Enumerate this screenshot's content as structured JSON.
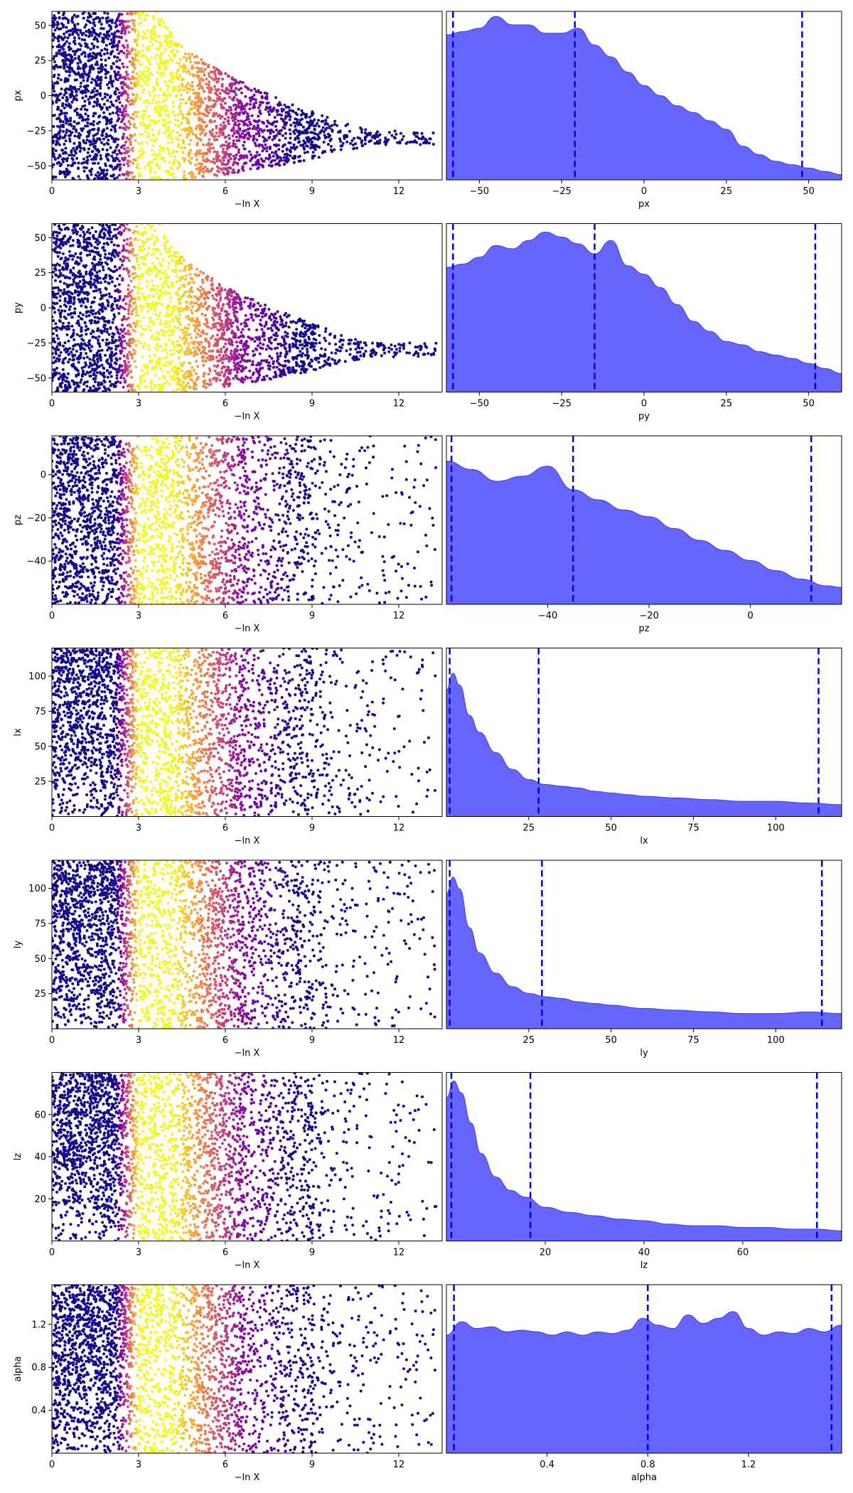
{
  "chart_data": [
    {
      "row": 0,
      "panel": "scatter",
      "type": "scatter",
      "xlabel": "−ln X",
      "ylabel": "px",
      "xlim": [
        0,
        13.5
      ],
      "ylim": [
        -60,
        60
      ],
      "xticks": [
        0,
        3,
        6,
        9,
        12
      ],
      "yticks": [
        50,
        25,
        0,
        -25,
        -50
      ],
      "envelope": "cone",
      "envelope_high": 60,
      "envelope_low": -60,
      "envelope_sat": 3.8,
      "envelope_tip": -25,
      "envelope_end": 11,
      "n_points": 3000
    },
    {
      "row": 0,
      "panel": "kde",
      "type": "area",
      "xlabel": "px",
      "xlim": [
        -60,
        60
      ],
      "xticks": [
        -50,
        -25,
        0,
        25,
        50
      ],
      "vlines": [
        -58,
        -21,
        48
      ],
      "density": [
        [
          -60,
          0.86
        ],
        [
          -55,
          0.88
        ],
        [
          -50,
          0.9
        ],
        [
          -45,
          0.97
        ],
        [
          -40,
          0.92
        ],
        [
          -35,
          0.92
        ],
        [
          -30,
          0.87
        ],
        [
          -25,
          0.87
        ],
        [
          -20,
          0.9
        ],
        [
          -15,
          0.8
        ],
        [
          -10,
          0.73
        ],
        [
          -5,
          0.64
        ],
        [
          0,
          0.56
        ],
        [
          5,
          0.5
        ],
        [
          10,
          0.44
        ],
        [
          15,
          0.4
        ],
        [
          20,
          0.35
        ],
        [
          25,
          0.3
        ],
        [
          30,
          0.2
        ],
        [
          35,
          0.15
        ],
        [
          40,
          0.11
        ],
        [
          45,
          0.09
        ],
        [
          50,
          0.07
        ],
        [
          55,
          0.05
        ],
        [
          60,
          0.03
        ]
      ]
    },
    {
      "row": 1,
      "panel": "scatter",
      "type": "scatter",
      "xlabel": "−ln X",
      "ylabel": "py",
      "xlim": [
        0,
        13.5
      ],
      "ylim": [
        -60,
        60
      ],
      "xticks": [
        0,
        3,
        6,
        9,
        12
      ],
      "yticks": [
        50,
        25,
        0,
        -25,
        -50
      ],
      "envelope": "cone",
      "envelope_high": 60,
      "envelope_low": -60,
      "envelope_sat": 3.8,
      "envelope_tip": -25,
      "envelope_end": 11,
      "n_points": 3000
    },
    {
      "row": 1,
      "panel": "kde",
      "type": "area",
      "xlabel": "py",
      "xlim": [
        -60,
        60
      ],
      "xticks": [
        -50,
        -25,
        0,
        25,
        50
      ],
      "vlines": [
        -58,
        -15,
        52
      ],
      "density": [
        [
          -60,
          0.74
        ],
        [
          -55,
          0.76
        ],
        [
          -50,
          0.8
        ],
        [
          -45,
          0.87
        ],
        [
          -40,
          0.85
        ],
        [
          -35,
          0.9
        ],
        [
          -30,
          0.95
        ],
        [
          -25,
          0.92
        ],
        [
          -20,
          0.88
        ],
        [
          -15,
          0.82
        ],
        [
          -10,
          0.9
        ],
        [
          -5,
          0.75
        ],
        [
          0,
          0.7
        ],
        [
          5,
          0.62
        ],
        [
          10,
          0.52
        ],
        [
          15,
          0.42
        ],
        [
          20,
          0.36
        ],
        [
          25,
          0.3
        ],
        [
          30,
          0.28
        ],
        [
          35,
          0.24
        ],
        [
          40,
          0.22
        ],
        [
          45,
          0.2
        ],
        [
          50,
          0.17
        ],
        [
          55,
          0.14
        ],
        [
          60,
          0.11
        ]
      ]
    },
    {
      "row": 2,
      "panel": "scatter",
      "type": "scatter",
      "xlabel": "−ln X",
      "ylabel": "pz",
      "xlim": [
        0,
        13.5
      ],
      "ylim": [
        -60,
        18
      ],
      "xticks": [
        0,
        3,
        6,
        9,
        12
      ],
      "yticks": [
        0,
        -20,
        -40
      ],
      "envelope": "fill",
      "n_points": 3000
    },
    {
      "row": 2,
      "panel": "kde",
      "type": "area",
      "xlabel": "pz",
      "xlim": [
        -60,
        18
      ],
      "xticks": [
        -40,
        -20,
        0
      ],
      "vlines": [
        -59,
        -35,
        12
      ],
      "density": [
        [
          -60,
          0.85
        ],
        [
          -55,
          0.8
        ],
        [
          -50,
          0.73
        ],
        [
          -45,
          0.76
        ],
        [
          -40,
          0.82
        ],
        [
          -35,
          0.68
        ],
        [
          -30,
          0.62
        ],
        [
          -25,
          0.56
        ],
        [
          -20,
          0.52
        ],
        [
          -15,
          0.45
        ],
        [
          -10,
          0.38
        ],
        [
          -5,
          0.32
        ],
        [
          0,
          0.26
        ],
        [
          5,
          0.2
        ],
        [
          10,
          0.15
        ],
        [
          15,
          0.11
        ],
        [
          18,
          0.1
        ]
      ]
    },
    {
      "row": 3,
      "panel": "scatter",
      "type": "scatter",
      "xlabel": "−ln X",
      "ylabel": "lx",
      "xlim": [
        0,
        13.5
      ],
      "ylim": [
        0,
        120
      ],
      "xticks": [
        0,
        3,
        6,
        9,
        12
      ],
      "yticks": [
        25,
        50,
        75,
        100
      ],
      "envelope": "fill",
      "n_points": 3000
    },
    {
      "row": 3,
      "panel": "kde",
      "type": "area",
      "xlabel": "lx",
      "xlim": [
        0,
        120
      ],
      "xticks": [
        25,
        50,
        75,
        100
      ],
      "vlines": [
        1,
        28,
        113
      ],
      "density": [
        [
          0,
          0.75
        ],
        [
          2,
          0.85
        ],
        [
          4,
          0.78
        ],
        [
          7,
          0.6
        ],
        [
          10,
          0.5
        ],
        [
          15,
          0.38
        ],
        [
          20,
          0.28
        ],
        [
          25,
          0.22
        ],
        [
          30,
          0.19
        ],
        [
          35,
          0.18
        ],
        [
          40,
          0.17
        ],
        [
          45,
          0.15
        ],
        [
          50,
          0.14
        ],
        [
          55,
          0.13
        ],
        [
          60,
          0.12
        ],
        [
          70,
          0.11
        ],
        [
          80,
          0.1
        ],
        [
          90,
          0.09
        ],
        [
          100,
          0.09
        ],
        [
          110,
          0.08
        ],
        [
          120,
          0.07
        ]
      ]
    },
    {
      "row": 4,
      "panel": "scatter",
      "type": "scatter",
      "xlabel": "−ln X",
      "ylabel": "ly",
      "xlim": [
        0,
        13.5
      ],
      "ylim": [
        0,
        120
      ],
      "xticks": [
        0,
        3,
        6,
        9,
        12
      ],
      "yticks": [
        25,
        50,
        75,
        100
      ],
      "envelope": "fill",
      "n_points": 3000
    },
    {
      "row": 4,
      "panel": "kde",
      "type": "area",
      "xlabel": "ly",
      "xlim": [
        0,
        120
      ],
      "xticks": [
        25,
        50,
        75,
        100
      ],
      "vlines": [
        1,
        29,
        114
      ],
      "density": [
        [
          0,
          0.8
        ],
        [
          2,
          0.9
        ],
        [
          4,
          0.83
        ],
        [
          7,
          0.6
        ],
        [
          10,
          0.45
        ],
        [
          15,
          0.33
        ],
        [
          20,
          0.25
        ],
        [
          25,
          0.21
        ],
        [
          30,
          0.19
        ],
        [
          35,
          0.18
        ],
        [
          40,
          0.16
        ],
        [
          45,
          0.15
        ],
        [
          50,
          0.14
        ],
        [
          60,
          0.12
        ],
        [
          70,
          0.11
        ],
        [
          80,
          0.1
        ],
        [
          90,
          0.09
        ],
        [
          100,
          0.09
        ],
        [
          110,
          0.1
        ],
        [
          120,
          0.09
        ]
      ]
    },
    {
      "row": 5,
      "panel": "scatter",
      "type": "scatter",
      "xlabel": "−ln X",
      "ylabel": "lz",
      "xlim": [
        0,
        13.5
      ],
      "ylim": [
        0,
        80
      ],
      "xticks": [
        0,
        3,
        6,
        9,
        12
      ],
      "yticks": [
        20,
        40,
        60
      ],
      "envelope": "fill",
      "n_points": 3000
    },
    {
      "row": 5,
      "panel": "kde",
      "type": "area",
      "xlabel": "lz",
      "xlim": [
        0,
        80
      ],
      "xticks": [
        20,
        40,
        60
      ],
      "vlines": [
        1,
        17,
        75
      ],
      "density": [
        [
          0,
          0.85
        ],
        [
          1.5,
          0.95
        ],
        [
          3,
          0.88
        ],
        [
          5,
          0.7
        ],
        [
          7,
          0.52
        ],
        [
          10,
          0.38
        ],
        [
          13,
          0.3
        ],
        [
          16,
          0.26
        ],
        [
          20,
          0.2
        ],
        [
          25,
          0.17
        ],
        [
          30,
          0.15
        ],
        [
          35,
          0.13
        ],
        [
          40,
          0.12
        ],
        [
          45,
          0.1
        ],
        [
          50,
          0.09
        ],
        [
          55,
          0.09
        ],
        [
          60,
          0.08
        ],
        [
          65,
          0.08
        ],
        [
          70,
          0.07
        ],
        [
          75,
          0.07
        ],
        [
          80,
          0.06
        ]
      ]
    },
    {
      "row": 6,
      "panel": "scatter",
      "type": "scatter",
      "xlabel": "−ln X",
      "ylabel": "alpha",
      "xlim": [
        0,
        13.5
      ],
      "ylim": [
        0,
        1.57
      ],
      "xticks": [
        0,
        3,
        6,
        9,
        12
      ],
      "yticks": [
        0.4,
        0.8,
        1.2
      ],
      "envelope": "fill",
      "n_points": 3000
    },
    {
      "row": 6,
      "panel": "kde",
      "type": "area",
      "xlabel": "alpha",
      "xlim": [
        0,
        1.57
      ],
      "xticks": [
        0.4,
        0.8,
        1.2
      ],
      "vlines": [
        0.03,
        0.8,
        1.53
      ],
      "density": [
        [
          0,
          0.7
        ],
        [
          0.06,
          0.78
        ],
        [
          0.12,
          0.74
        ],
        [
          0.18,
          0.75
        ],
        [
          0.24,
          0.72
        ],
        [
          0.3,
          0.73
        ],
        [
          0.36,
          0.72
        ],
        [
          0.42,
          0.7
        ],
        [
          0.48,
          0.72
        ],
        [
          0.54,
          0.7
        ],
        [
          0.6,
          0.72
        ],
        [
          0.66,
          0.71
        ],
        [
          0.72,
          0.73
        ],
        [
          0.78,
          0.8
        ],
        [
          0.84,
          0.76
        ],
        [
          0.9,
          0.74
        ],
        [
          0.96,
          0.82
        ],
        [
          1.02,
          0.77
        ],
        [
          1.08,
          0.8
        ],
        [
          1.14,
          0.84
        ],
        [
          1.2,
          0.74
        ],
        [
          1.26,
          0.7
        ],
        [
          1.32,
          0.72
        ],
        [
          1.38,
          0.71
        ],
        [
          1.44,
          0.74
        ],
        [
          1.5,
          0.72
        ],
        [
          1.57,
          0.76
        ]
      ]
    }
  ],
  "colors": {
    "kde_fill": "#6666ff",
    "kde_edge": "#3a3ae0",
    "vline": "#0000ee"
  }
}
